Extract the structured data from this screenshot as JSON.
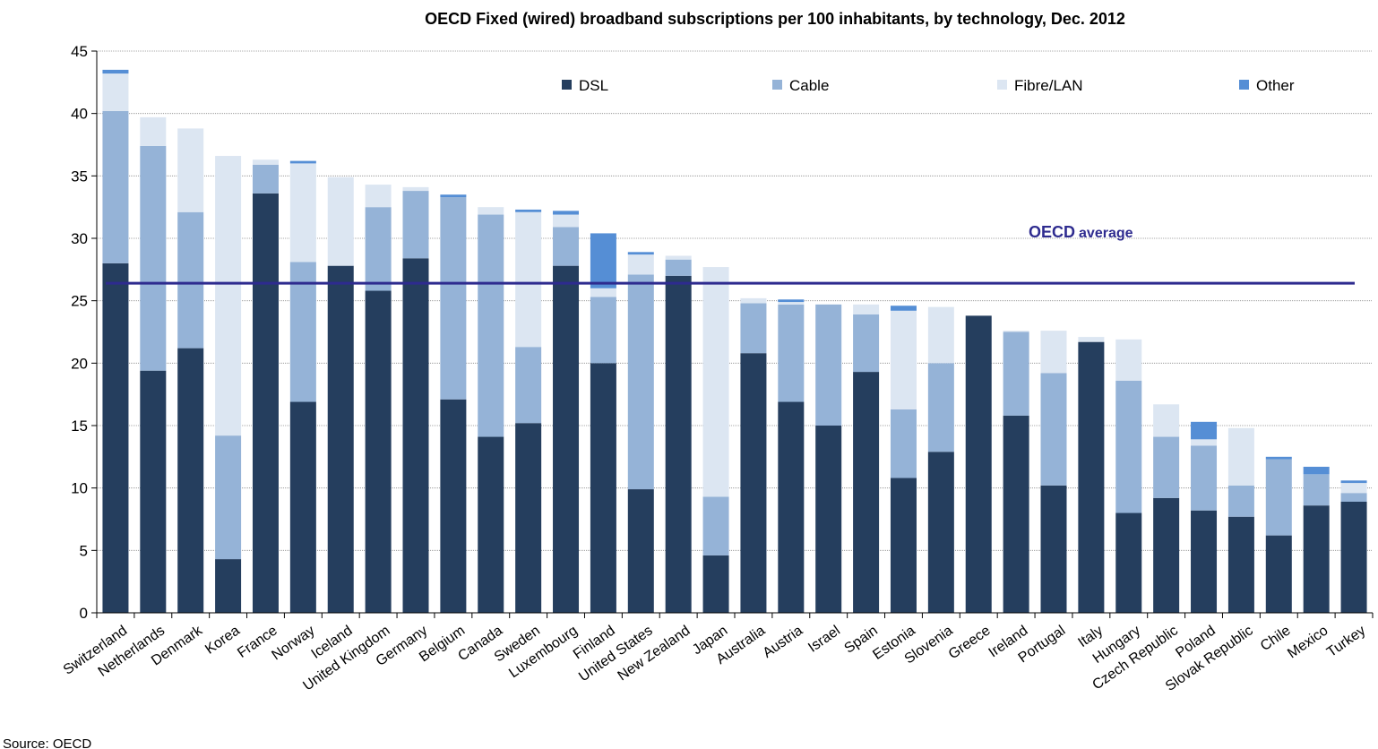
{
  "chart_data": {
    "type": "bar",
    "stacked": true,
    "title": "OECD Fixed (wired) broadband subscriptions per 100 inhabitants, by technology, Dec. 2012",
    "xlabel": "",
    "ylabel": "",
    "ylim": [
      0,
      45
    ],
    "yticks": [
      0,
      5,
      10,
      15,
      20,
      25,
      30,
      35,
      40,
      45
    ],
    "grid": true,
    "legend_position": "top",
    "categories": [
      "Switzerland",
      "Netherlands",
      "Denmark",
      "Korea",
      "France",
      "Norway",
      "Iceland",
      "United Kingdom",
      "Germany",
      "Belgium",
      "Canada",
      "Sweden",
      "Luxembourg",
      "Finland",
      "United States",
      "New Zealand",
      "Japan",
      "Australia",
      "Austria",
      "Israel",
      "Spain",
      "Estonia",
      "Slovenia",
      "Greece",
      "Ireland",
      "Portugal",
      "Italy",
      "Hungary",
      "Czech Republic",
      "Poland",
      "Slovak Republic",
      "Chile",
      "Mexico",
      "Turkey"
    ],
    "series": [
      {
        "name": "DSL",
        "color": "#253e5e",
        "values": [
          28.0,
          19.4,
          21.2,
          4.3,
          33.6,
          16.9,
          27.8,
          25.8,
          28.4,
          17.1,
          14.1,
          15.2,
          27.8,
          20.0,
          9.9,
          27.0,
          4.6,
          20.8,
          16.9,
          15.0,
          19.3,
          10.8,
          12.9,
          23.8,
          15.8,
          10.2,
          21.7,
          8.0,
          9.2,
          8.2,
          7.7,
          6.2,
          8.6,
          8.9
        ]
      },
      {
        "name": "Cable",
        "color": "#95b3d7",
        "values": [
          12.2,
          18.0,
          10.9,
          9.9,
          2.3,
          11.2,
          0.0,
          6.7,
          5.4,
          16.2,
          17.8,
          6.1,
          3.1,
          5.3,
          17.2,
          1.3,
          4.7,
          4.0,
          7.8,
          9.7,
          4.6,
          5.5,
          7.1,
          0.0,
          6.7,
          9.0,
          0.0,
          10.6,
          4.9,
          5.2,
          2.5,
          6.1,
          2.5,
          0.7
        ]
      },
      {
        "name": "Fibre/LAN",
        "color": "#dce6f2",
        "values": [
          3.0,
          2.3,
          6.7,
          22.4,
          0.4,
          7.9,
          7.1,
          1.8,
          0.3,
          0.0,
          0.6,
          10.8,
          1.0,
          0.7,
          1.6,
          0.3,
          18.4,
          0.4,
          0.2,
          0.0,
          0.8,
          7.9,
          4.5,
          0.0,
          0.1,
          3.4,
          0.4,
          3.3,
          2.6,
          0.5,
          4.6,
          0.0,
          0.0,
          0.8
        ]
      },
      {
        "name": "Other",
        "color": "#558ed5",
        "values": [
          0.3,
          0.0,
          0.0,
          0.0,
          0.0,
          0.2,
          0.0,
          0.0,
          0.0,
          0.2,
          0.0,
          0.2,
          0.3,
          4.4,
          0.2,
          0.0,
          0.0,
          0.0,
          0.2,
          0.0,
          0.0,
          0.4,
          0.0,
          0.0,
          0.0,
          0.0,
          0.0,
          0.0,
          0.0,
          1.4,
          0.0,
          0.2,
          0.6,
          0.2
        ]
      }
    ],
    "reference_line": {
      "label_main": "OECD",
      "label_small": "average",
      "value": 26.4,
      "color": "#2e2b8f"
    }
  },
  "source": "Source: OECD"
}
